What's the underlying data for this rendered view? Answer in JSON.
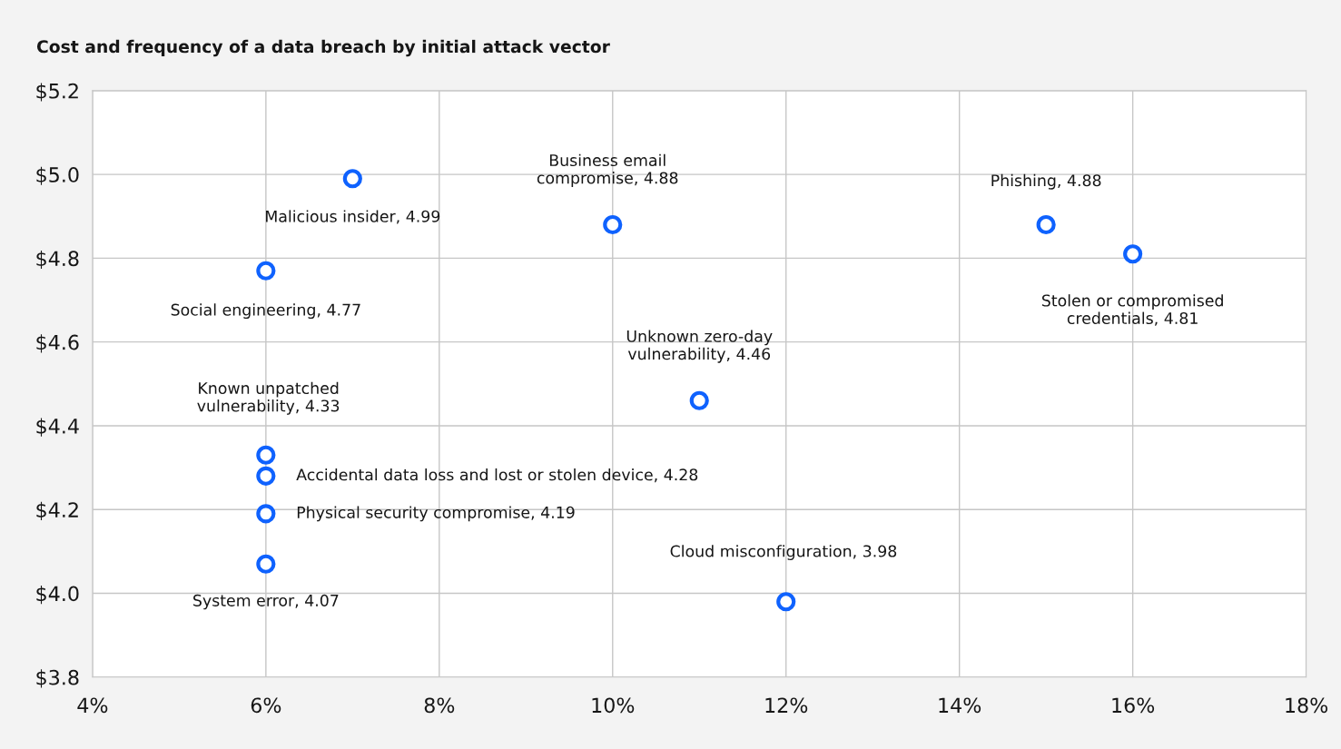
{
  "chart_data": {
    "type": "scatter",
    "title": "Cost and frequency of a data breach by initial attack vector",
    "x": [
      7,
      10,
      15,
      16,
      6,
      11,
      6,
      6,
      6,
      6,
      12
    ],
    "values": [
      4.99,
      4.88,
      4.88,
      4.81,
      4.77,
      4.46,
      4.33,
      4.28,
      4.19,
      4.07,
      3.98
    ],
    "color": "#0f62fe",
    "marker": "circle",
    "grid": true,
    "xlim": [
      4,
      18
    ],
    "xticks": [
      {
        "value": 4,
        "label": "4%"
      },
      {
        "value": 6,
        "label": "6%"
      },
      {
        "value": 8,
        "label": "8%"
      },
      {
        "value": 10,
        "label": "10%"
      },
      {
        "value": 12,
        "label": "12%"
      },
      {
        "value": 14,
        "label": "14%"
      },
      {
        "value": 16,
        "label": "16%"
      },
      {
        "value": 18,
        "label": "18%"
      }
    ],
    "ylim": [
      3.8,
      5.2
    ],
    "yticks": [
      {
        "value": 3.8,
        "label": "$3.8"
      },
      {
        "value": 4.0,
        "label": "$4.0"
      },
      {
        "value": 4.2,
        "label": "$4.2"
      },
      {
        "value": 4.4,
        "label": "$4.4"
      },
      {
        "value": 4.6,
        "label": "$4.6"
      },
      {
        "value": 4.8,
        "label": "$4.8"
      },
      {
        "value": 5.0,
        "label": "$5.0"
      },
      {
        "value": 5.2,
        "label": "$5.2"
      }
    ],
    "annotations": [
      {
        "text": "Malicious insider, 4.99",
        "x": 7,
        "y": 4.99
      },
      {
        "text": "Business email\ncompromise, 4.88",
        "x": 10,
        "y": 4.88
      },
      {
        "text": "Phishing, 4.88",
        "x": 15,
        "y": 4.88
      },
      {
        "text": "Stolen or compromised\ncredentials, 4.81",
        "x": 16,
        "y": 4.81
      },
      {
        "text": "Social engineering, 4.77",
        "x": 6,
        "y": 4.77
      },
      {
        "text": "Unknown zero-day\nvulnerability, 4.46",
        "x": 11,
        "y": 4.46
      },
      {
        "text": "Known unpatched\nvulnerability, 4.33",
        "x": 6,
        "y": 4.33
      },
      {
        "text": "Accidental data loss and lost or stolen device, 4.28",
        "x": 6,
        "y": 4.28
      },
      {
        "text": "Physical security compromise, 4.19",
        "x": 6,
        "y": 4.19
      },
      {
        "text": "System error, 4.07",
        "x": 6,
        "y": 4.07
      },
      {
        "text": "Cloud misconfiguration, 3.98",
        "x": 12,
        "y": 3.98
      }
    ]
  }
}
